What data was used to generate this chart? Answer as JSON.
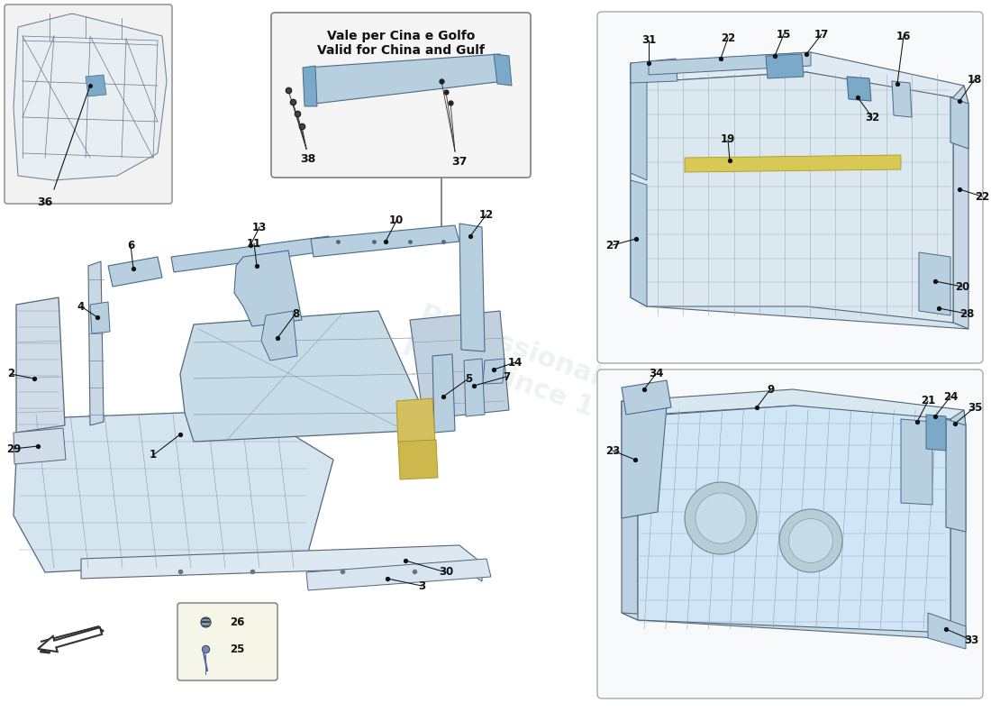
{
  "bg_color": "#ffffff",
  "light_blue": "#b8cfe0",
  "mid_blue": "#7aaac8",
  "dark_blue": "#4a6a8a",
  "very_light_blue": "#dce8f0",
  "frame_color": "#556677",
  "line_color": "#333333",
  "label_color": "#111111",
  "yellow_part": "#d4c060",
  "inset_bg": "#f2f2f2",
  "callout_bg": "#f5f5f5",
  "callout_line1": "Vale per Cina e Golfo",
  "callout_line2": "Valid for China and Gulf",
  "watermark1": "Professional",
  "watermark2": "parts since 1"
}
